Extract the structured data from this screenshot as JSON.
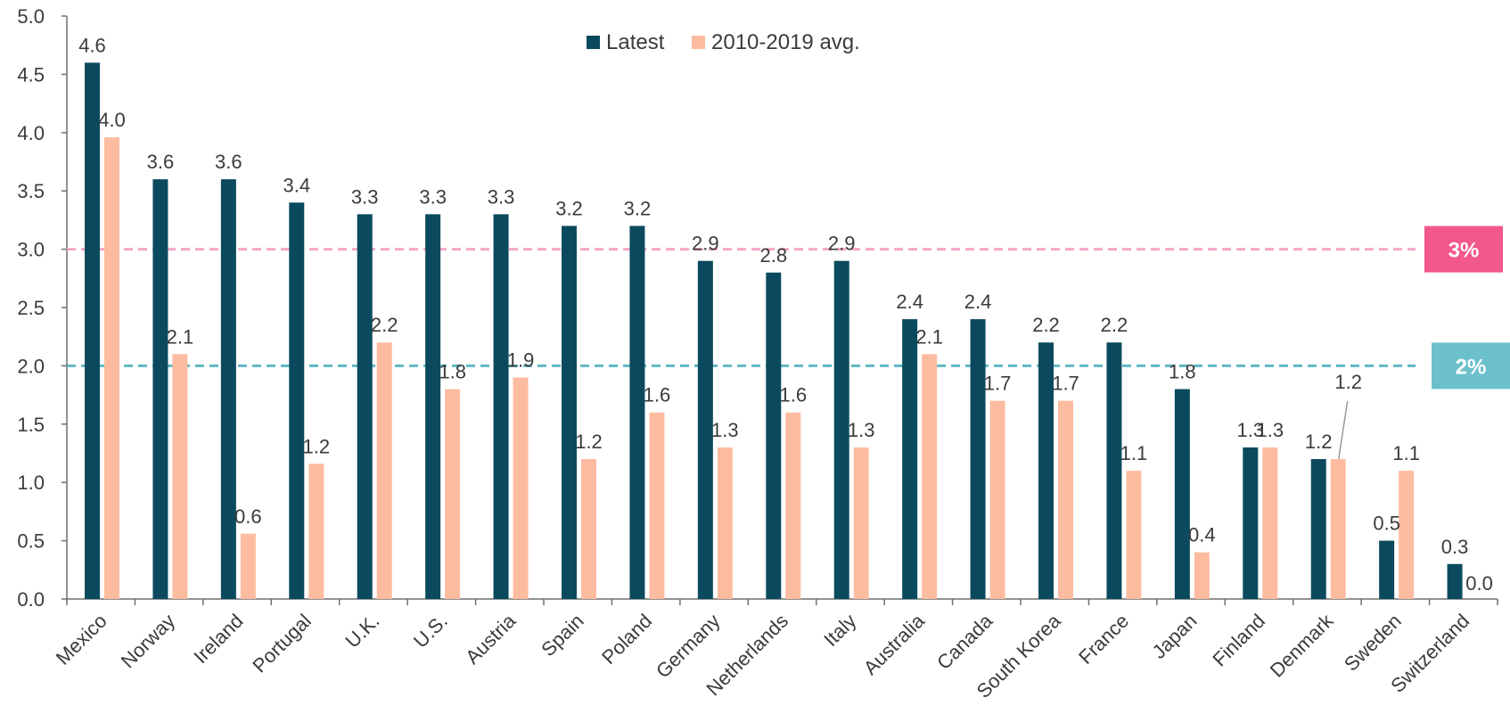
{
  "chart_data": {
    "type": "bar",
    "categories": [
      "Mexico",
      "Norway",
      "Ireland",
      "Portugal",
      "U.K.",
      "U.S.",
      "Austria",
      "Spain",
      "Poland",
      "Germany",
      "Netherlands",
      "Italy",
      "Australia",
      "Canada",
      "South Korea",
      "France",
      "Japan",
      "Finland",
      "Denmark",
      "Sweden",
      "Switzerland"
    ],
    "series": [
      {
        "name": "Latest",
        "color": "#0b4a5e",
        "values": [
          4.6,
          3.6,
          3.6,
          3.4,
          3.3,
          3.3,
          3.3,
          3.2,
          3.2,
          2.9,
          2.8,
          2.9,
          2.4,
          2.4,
          2.2,
          2.2,
          1.8,
          1.3,
          1.2,
          0.5,
          0.3
        ],
        "labels": [
          "4.6",
          "3.6",
          "3.6",
          "3.4",
          "3.3",
          "3.3",
          "3.3",
          "3.2",
          "3.2",
          "2.9",
          "2.8",
          "2.9",
          "2.4",
          "2.4",
          "2.2",
          "2.2",
          "1.8",
          "1.3",
          "1.2",
          "0.5",
          "0.3"
        ]
      },
      {
        "name": "2010-2019 avg.",
        "color": "#fdbca0",
        "values": [
          3.96,
          2.1,
          0.56,
          1.16,
          2.2,
          1.8,
          1.9,
          1.2,
          1.6,
          1.3,
          1.6,
          1.3,
          2.1,
          1.7,
          1.7,
          1.1,
          0.4,
          1.3,
          1.2,
          1.1,
          0.0
        ],
        "labels": [
          "4.0",
          "2.1",
          "0.6",
          "1.2",
          "2.2",
          "1.8",
          "1.9",
          "1.2",
          "1.6",
          "1.3",
          "1.6",
          "1.3",
          "2.1",
          "1.7",
          "1.7",
          "1.1",
          "0.4",
          "1.3",
          "1.2",
          "1.1",
          "0.0"
        ]
      }
    ],
    "ylim": [
      0,
      5
    ],
    "yticks": [
      "0.0",
      "0.5",
      "1.0",
      "1.5",
      "2.0",
      "2.5",
      "3.0",
      "3.5",
      "4.0",
      "4.5",
      "5.0"
    ],
    "reference_lines": [
      {
        "value": 3.0,
        "label": "3%",
        "color": "#f6a6c8",
        "badge_color": "#f2578d"
      },
      {
        "value": 2.0,
        "label": "2%",
        "color": "#5fb8c4",
        "badge_color": "#6cc0cb"
      }
    ],
    "legend_position": "top-center",
    "grid": false
  }
}
